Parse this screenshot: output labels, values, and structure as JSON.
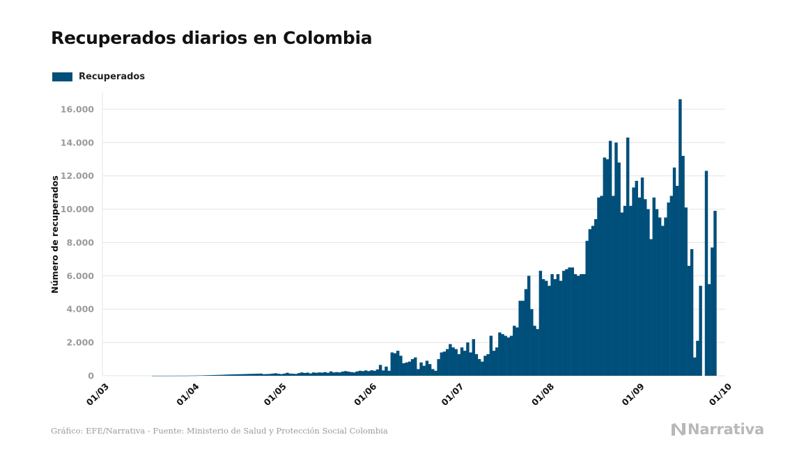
{
  "title": "Recuperados diarios en Colombia",
  "legend": {
    "label": "Recuperados",
    "color": "#004f7a"
  },
  "source": "Gráfico: EFE/Narrativa - Fuente: Ministerio de Salud y Protección Social Colombia",
  "brand": "Narrativa",
  "chart_data": {
    "type": "bar",
    "title": "Recuperados diarios en Colombia",
    "ylabel": "Número de recuperados",
    "xlabel": "",
    "ylim": [
      0,
      17000
    ],
    "grid": true,
    "legend_position": "top-left",
    "bar_color": "#004f7a",
    "y_ticks": [
      {
        "value": 0,
        "label": "0"
      },
      {
        "value": 2000,
        "label": "2.000"
      },
      {
        "value": 4000,
        "label": "4.000"
      },
      {
        "value": 6000,
        "label": "6.000"
      },
      {
        "value": 8000,
        "label": "8.000"
      },
      {
        "value": 10000,
        "label": "10.000"
      },
      {
        "value": 12000,
        "label": "12.000"
      },
      {
        "value": 14000,
        "label": "14.000"
      },
      {
        "value": 16000,
        "label": "16.000"
      }
    ],
    "x_ticks": [
      {
        "date": "2020-03-01",
        "label": "01/03"
      },
      {
        "date": "2020-04-01",
        "label": "01/04"
      },
      {
        "date": "2020-05-01",
        "label": "01/05"
      },
      {
        "date": "2020-06-01",
        "label": "01/06"
      },
      {
        "date": "2020-07-01",
        "label": "01/07"
      },
      {
        "date": "2020-08-01",
        "label": "01/08"
      },
      {
        "date": "2020-09-01",
        "label": "01/09"
      },
      {
        "date": "2020-10-01",
        "label": "01/10"
      }
    ],
    "start_date": "2020-03-01",
    "series": [
      {
        "name": "Recuperados",
        "values": [
          0,
          0,
          0,
          0,
          0,
          0,
          0,
          0,
          0,
          0,
          0,
          0,
          0,
          0,
          0,
          0,
          0,
          1,
          1,
          2,
          1,
          2,
          3,
          2,
          3,
          4,
          5,
          6,
          5,
          8,
          10,
          12,
          15,
          20,
          25,
          30,
          35,
          40,
          45,
          50,
          55,
          60,
          70,
          75,
          80,
          85,
          90,
          95,
          100,
          105,
          110,
          115,
          120,
          125,
          130,
          95,
          100,
          110,
          130,
          150,
          120,
          100,
          130,
          180,
          130,
          120,
          110,
          160,
          200,
          170,
          190,
          140,
          200,
          180,
          200,
          190,
          220,
          180,
          260,
          200,
          220,
          200,
          250,
          280,
          250,
          220,
          200,
          260,
          300,
          280,
          320,
          280,
          330,
          300,
          380,
          650,
          320,
          550,
          300,
          1400,
          1350,
          1500,
          1200,
          750,
          800,
          850,
          1000,
          1100,
          400,
          800,
          600,
          900,
          700,
          400,
          300,
          1000,
          1400,
          1450,
          1600,
          1900,
          1700,
          1600,
          1300,
          1700,
          1500,
          2000,
          1400,
          2200,
          1300,
          1000,
          850,
          1200,
          1300,
          2400,
          1500,
          1700,
          2600,
          2500,
          2400,
          2300,
          2400,
          3000,
          2900,
          4500,
          4500,
          5200,
          6000,
          4000,
          3000,
          2800,
          6300,
          5800,
          5700,
          5400,
          6100,
          5800,
          6100,
          5700,
          6300,
          6400,
          6500,
          6500,
          6100,
          6000,
          6100,
          6100,
          8100,
          8800,
          9000,
          9400,
          10700,
          10800,
          13100,
          13000,
          14100,
          10800,
          14000,
          12800,
          9800,
          10200,
          14300,
          10200,
          11300,
          11700,
          10700,
          11900,
          10600,
          10000,
          8200,
          10700,
          10000,
          9500,
          9000,
          9500,
          10400,
          10800,
          12500,
          11400,
          16600,
          13200,
          10100,
          6600,
          7600,
          1100,
          2100,
          5400,
          0,
          12300,
          5500,
          7700,
          9900
        ]
      }
    ]
  }
}
